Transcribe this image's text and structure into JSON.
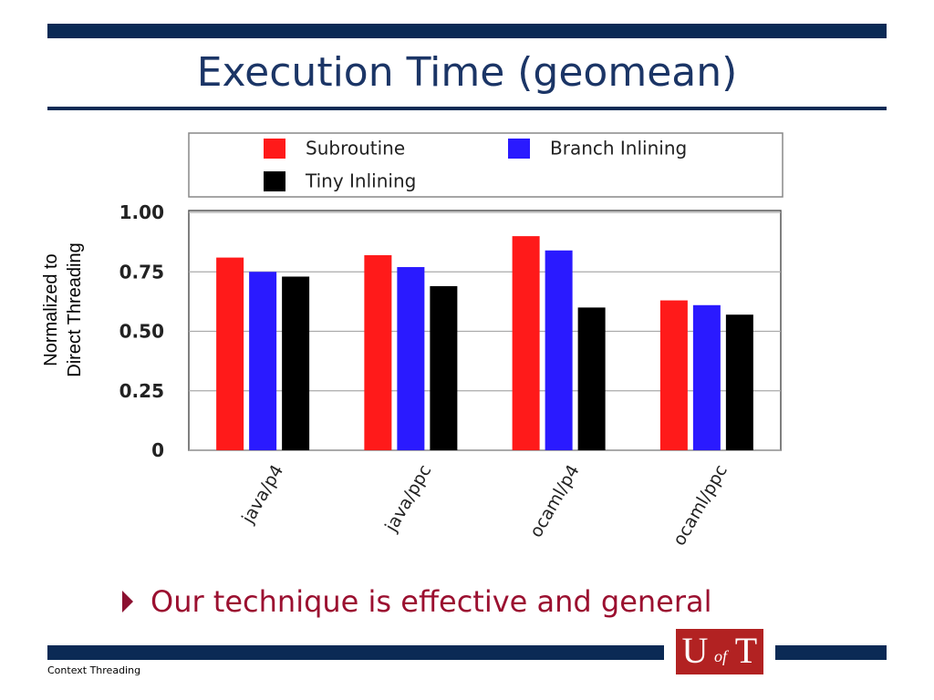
{
  "title": "Execution Time (geomean)",
  "bullet": "Our technique is effective and general",
  "footer": "Context Threading",
  "logo": {
    "left": "U",
    "middle": "of",
    "right": "T"
  },
  "chart_data": {
    "type": "bar",
    "ylabel": [
      "Normalized to",
      "Direct Threading"
    ],
    "categories": [
      "java/p4",
      "java/ppc",
      "ocaml/p4",
      "ocaml/ppc"
    ],
    "series": [
      {
        "name": "Subroutine",
        "color": "#ff1a1a",
        "values": [
          0.81,
          0.82,
          0.9,
          0.63
        ]
      },
      {
        "name": "Branch Inlining",
        "color": "#2a1aff",
        "values": [
          0.75,
          0.77,
          0.84,
          0.61
        ]
      },
      {
        "name": "Tiny Inlining",
        "color": "#000000",
        "values": [
          0.73,
          0.69,
          0.6,
          0.57
        ]
      }
    ],
    "ylim": [
      0,
      1
    ],
    "yticks": [
      0,
      0.25,
      {
        "value": 0.5,
        "label": "0.50"
      },
      0.75,
      {
        "value": 1,
        "label": "1.00"
      }
    ],
    "grid": true
  }
}
